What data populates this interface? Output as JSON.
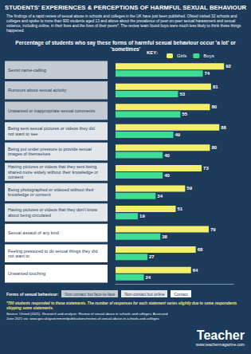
{
  "header": {
    "title": "STUDENTS' EXPERIENCES & PERCEPTIONS OF HARMFUL SEXUAL BEHAVIOUR",
    "intro": "The findings of a rapid review of sexual abuse in schools and colleges in the UK have just been published. Ofsted visited 32 schools and colleges and spoke to more than 900 students aged 13 and above about the prevalence of peer-on-peer sexual harassment and sexual violence, including online, in their lives and the lives of their peers*. The review team found boys were much less likely to think these things happened."
  },
  "chart_data": {
    "type": "bar",
    "orientation": "horizontal",
    "title": "Percentage of students who say these forms of harmful sexual behaviour occur 'a lot' or 'sometimes'",
    "key_label": "KEY:",
    "legend": "top",
    "categories": [
      "Sexist name-calling",
      "Rumours about sexual activity",
      "Unwanted or inappropriate sexual comments",
      "Being sent sexual pictures or videos they did not want to see",
      "Being put under pressure to provide sexual images of themselves",
      "Having pictures or videos that they sent being shared more widely without their knowledge or consent",
      "Being photographed or videoed without their knowledge or consent",
      "Having pictures or videos that they don't know about being circulated",
      "Sexual assault of any kind",
      "Feeling pressured to do sexual things they did not want to",
      "Unwanted touching"
    ],
    "series": [
      {
        "name": "Girls",
        "color": "#f4ef6a",
        "values": [
          92,
          81,
          80,
          88,
          80,
          73,
          59,
          51,
          79,
          68,
          64
        ]
      },
      {
        "name": "Boys",
        "color": "#3fdc96",
        "values": [
          74,
          53,
          55,
          49,
          40,
          40,
          34,
          19,
          38,
          27,
          24
        ]
      }
    ],
    "xlim": [
      0,
      100
    ],
    "tick_labels": "y",
    "data_labels": true,
    "grid": false,
    "forms_title": "Forms of sexual behaviour:",
    "forms": [
      {
        "name": "Non-contact but face-to-face",
        "color": "#c3cad1"
      },
      {
        "name": "Non-contact but online",
        "color": "#e3e7ea"
      },
      {
        "name": "Contact",
        "color": "#ffffff"
      }
    ],
    "category_forms": [
      "Non-contact but face-to-face",
      "Non-contact but face-to-face",
      "Non-contact but face-to-face",
      "Non-contact but online",
      "Non-contact but online",
      "Non-contact but online",
      "Non-contact but online",
      "Non-contact but online",
      "Contact",
      "Contact",
      "Contact"
    ]
  },
  "notes": {
    "footnote": "*780 students responded to these statements. The number of responses for each statement varies slightly due to some respondents skipping some statements.",
    "source": "Source: Ofsted (2021). Research and analysis: Review of sexual abuse in schools and colleges. Accessed June 2021 via: www.gov.uk/government/publications/review-of-sexual-abuse-in-schools-and-colleges"
  },
  "footer": {
    "brand": "Teacher",
    "url": "www.teachermagazine.com"
  }
}
